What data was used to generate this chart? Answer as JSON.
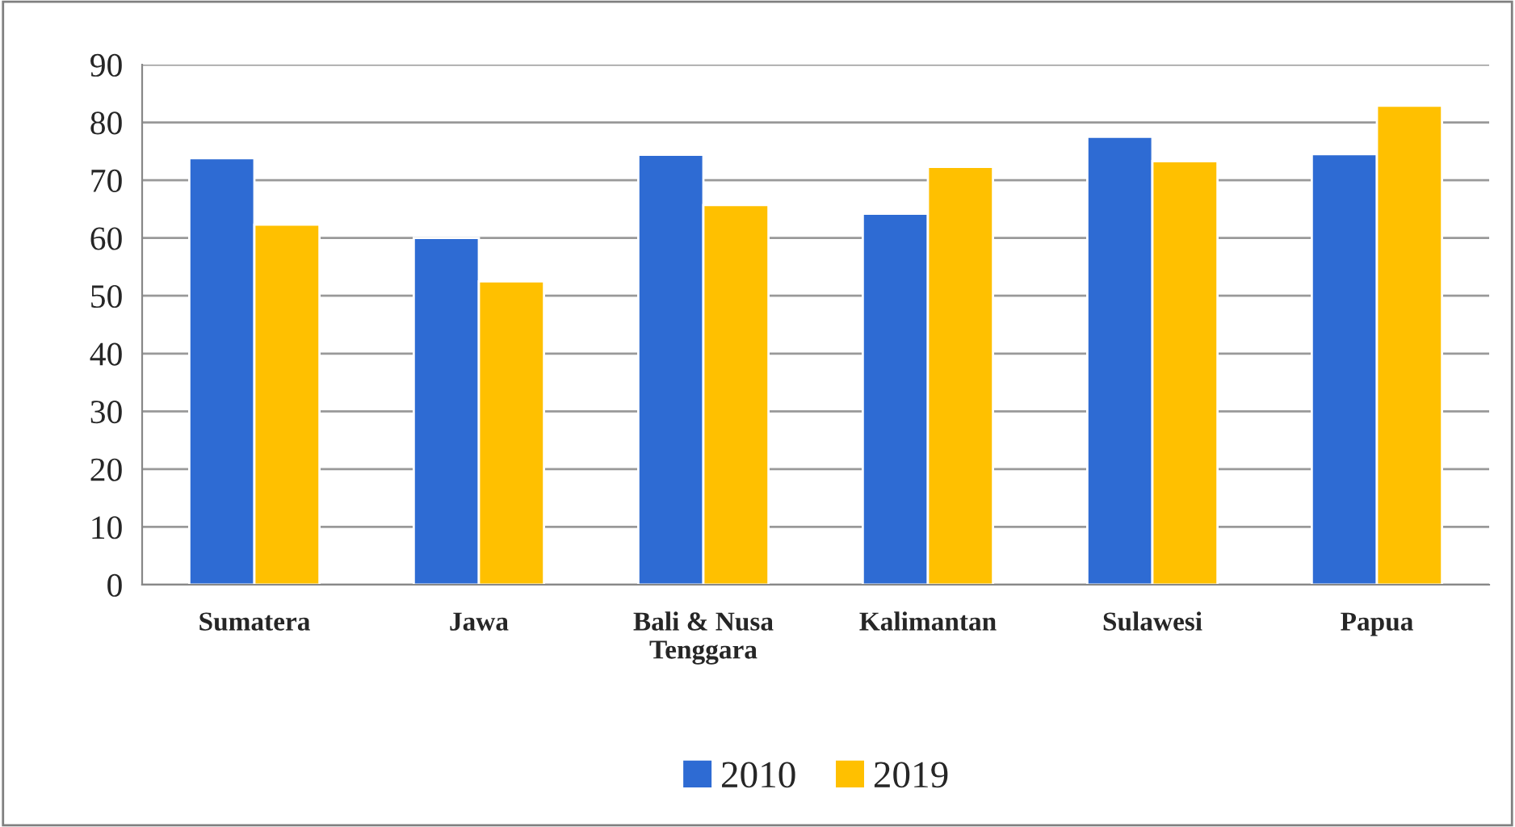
{
  "chart_data": {
    "type": "bar",
    "categories": [
      "Sumatera",
      "Jawa",
      "Bali & Nusa\nTenggara",
      "Kalimantan",
      "Sulawesi",
      "Papua"
    ],
    "series": [
      {
        "name": "2010",
        "color": "#2e6bd3",
        "values": [
          73.8,
          60,
          74.4,
          64.2,
          77.5,
          74.5
        ]
      },
      {
        "name": "2019",
        "color": "#ffc000",
        "values": [
          62.3,
          52.5,
          65.7,
          72.3,
          73.3,
          82.9
        ]
      }
    ],
    "ylim": [
      0,
      90
    ],
    "yticks": [
      0,
      10,
      20,
      30,
      40,
      50,
      60,
      70,
      80,
      90
    ],
    "grid": "y",
    "legend": "bottom"
  }
}
